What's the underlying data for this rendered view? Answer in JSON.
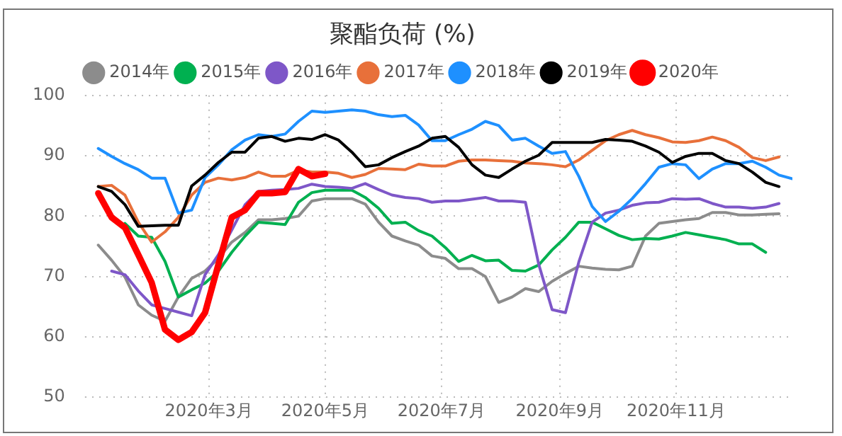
{
  "chart_data": {
    "type": "line",
    "title": "聚酯负荷 (%)",
    "legend": "top",
    "grid": true,
    "line_style": "solid",
    "marker": "none",
    "x": [
      "2020-01-03",
      "2020-01-10",
      "2020-01-17",
      "2020-01-24",
      "2020-01-31",
      "2020-02-07",
      "2020-02-14",
      "2020-02-21",
      "2020-02-28",
      "2020-03-06",
      "2020-03-13",
      "2020-03-20",
      "2020-03-27",
      "2020-04-03",
      "2020-04-10",
      "2020-04-17",
      "2020-04-24",
      "2020-05-01",
      "2020-05-08",
      "2020-05-15",
      "2020-05-22",
      "2020-05-29",
      "2020-06-05",
      "2020-06-12",
      "2020-06-19",
      "2020-06-26",
      "2020-07-03",
      "2020-07-10",
      "2020-07-17",
      "2020-07-24",
      "2020-07-31",
      "2020-08-07",
      "2020-08-14",
      "2020-08-21",
      "2020-08-28",
      "2020-09-04",
      "2020-09-11",
      "2020-09-18",
      "2020-09-25",
      "2020-10-02",
      "2020-10-09",
      "2020-10-16",
      "2020-10-23",
      "2020-10-30",
      "2020-11-06",
      "2020-11-13",
      "2020-11-20",
      "2020-11-27",
      "2020-12-04",
      "2020-12-11",
      "2020-12-18",
      "2020-12-25",
      "2021-01-01"
    ],
    "xlim": [
      "2019-12-27",
      "2021-01-01"
    ],
    "xticks": [
      {
        "value": "2020-03-01",
        "label": "2020年3月"
      },
      {
        "value": "2020-05-01",
        "label": "2020年5月"
      },
      {
        "value": "2020-07-01",
        "label": "2020年7月"
      },
      {
        "value": "2020-09-01",
        "label": "2020年9月"
      },
      {
        "value": "2020-11-01",
        "label": "2020年11月"
      }
    ],
    "ylim": [
      50,
      100
    ],
    "yticks": [
      50,
      60,
      70,
      80,
      90,
      100
    ],
    "series": [
      {
        "name": "2014年",
        "color": "#8c8c8c",
        "values": [
          75.2,
          72.7,
          69.9,
          65.3,
          63.6,
          62.6,
          66.6,
          69.7,
          70.9,
          73,
          75.7,
          77.3,
          79.4,
          79.4,
          79.6,
          80.0,
          82.5,
          82.9,
          82.9,
          82.9,
          82,
          79,
          76.7,
          75.9,
          75.2,
          73.4,
          73,
          71.3,
          71.3,
          70,
          65.7,
          66.6,
          68,
          67.5,
          69.2,
          70.5,
          71.7,
          71.4,
          71.2,
          71.1,
          71.7,
          76.7,
          78.8,
          79.1,
          79.4,
          79.6,
          80.6,
          80.6,
          80.2,
          80.2,
          80.3,
          80.4,
          null
        ]
      },
      {
        "name": "2015年",
        "color": "#00b050",
        "values": [
          null,
          null,
          78.8,
          76.7,
          76.5,
          72.5,
          66.6,
          67.8,
          68.9,
          70.9,
          74,
          76.7,
          79,
          78.8,
          78.6,
          82.3,
          83.9,
          84.3,
          84.3,
          84.3,
          83.1,
          81.3,
          78.8,
          79,
          77.6,
          76.7,
          74.8,
          72.5,
          73.5,
          72.6,
          72.7,
          71,
          70.9,
          71.9,
          74.4,
          76.5,
          79,
          79,
          77.9,
          76.8,
          76.1,
          76.3,
          76.2,
          76.7,
          77.3,
          76.9,
          76.5,
          76.1,
          75.4,
          75.4,
          74,
          null,
          null
        ]
      },
      {
        "name": "2016年",
        "color": "#7e57c8",
        "values": [
          null,
          70.9,
          70.3,
          67.6,
          65.3,
          64.7,
          64.1,
          63.5,
          70.3,
          73.6,
          77.7,
          81.9,
          84.1,
          84.3,
          84.4,
          84.6,
          85.3,
          84.9,
          84.8,
          84.6,
          85.4,
          84.4,
          83.5,
          83.1,
          82.9,
          82.3,
          82.5,
          82.5,
          82.8,
          83.1,
          82.5,
          82.5,
          82.3,
          72,
          64.5,
          64,
          72.4,
          79,
          80.5,
          81,
          81.8,
          82.2,
          82.3,
          82.9,
          82.8,
          82.9,
          82.1,
          81.5,
          81.5,
          81.3,
          81.5,
          82.1,
          null
        ]
      },
      {
        "name": "2017年",
        "color": "#e8703a",
        "values": [
          84.9,
          85.1,
          83.5,
          79,
          75.7,
          77.4,
          79.8,
          83.5,
          85.6,
          86.3,
          86,
          86.4,
          87.3,
          86.6,
          86.6,
          87.6,
          87.3,
          87.3,
          87.1,
          86.4,
          86.9,
          87.9,
          87.8,
          87.7,
          88.6,
          88.3,
          88.3,
          89.1,
          89.3,
          89.3,
          89.2,
          89.1,
          88.8,
          88.7,
          88.5,
          88.2,
          89.3,
          90.9,
          92.5,
          93.5,
          94.2,
          93.5,
          93,
          92.3,
          92.2,
          92.5,
          93.1,
          92.5,
          91.4,
          89.7,
          89.2,
          89.8,
          null
        ]
      },
      {
        "name": "2018年",
        "color": "#1e90ff",
        "values": [
          91.2,
          89.9,
          88.7,
          87.7,
          86.3,
          86.3,
          80.5,
          81,
          86.4,
          88.5,
          91,
          92.6,
          93.5,
          93.2,
          93.6,
          95.7,
          97.4,
          97.2,
          97.4,
          97.6,
          97.4,
          96.8,
          96.5,
          96.7,
          95.1,
          92.5,
          92.5,
          93.5,
          94.4,
          95.7,
          95,
          92.6,
          92.9,
          91.6,
          90.4,
          90.7,
          86.6,
          81.6,
          79.1,
          80.8,
          82.9,
          85.4,
          88.1,
          88.7,
          88.5,
          86.2,
          87.8,
          88.7,
          88.7,
          89.1,
          88.1,
          86.8,
          86.2
        ]
      },
      {
        "name": "2019年",
        "color": "#000000",
        "values": [
          84.9,
          84.1,
          81.9,
          78.3,
          78.4,
          78.5,
          78.5,
          85,
          86.8,
          88.9,
          90.6,
          90.6,
          92.9,
          93.2,
          92.4,
          92.9,
          92.7,
          93.5,
          92.6,
          90.6,
          88.2,
          88.5,
          89.7,
          90.7,
          91.6,
          92.9,
          93.2,
          91.4,
          88.5,
          86.8,
          86.4,
          87.8,
          89.1,
          90.1,
          92.2,
          92.2,
          92.2,
          92.2,
          92.7,
          92.6,
          92.4,
          91.6,
          90.6,
          88.9,
          89.9,
          90.4,
          90.4,
          89.2,
          88.7,
          87.3,
          85.6,
          84.9,
          null
        ]
      },
      {
        "name": "2020年",
        "color": "#ff0000",
        "values": [
          83.8,
          79.8,
          78.1,
          73.6,
          69,
          61.2,
          59.5,
          60.8,
          64,
          72,
          79.8,
          81,
          83.8,
          83.8,
          84,
          87.8,
          86.6,
          87,
          null,
          null,
          null,
          null,
          null,
          null,
          null,
          null,
          null,
          null,
          null,
          null,
          null,
          null,
          null,
          null,
          null,
          null,
          null,
          null,
          null,
          null,
          null,
          null,
          null,
          null,
          null,
          null,
          null,
          null,
          null,
          null,
          null,
          null,
          null
        ]
      }
    ]
  }
}
